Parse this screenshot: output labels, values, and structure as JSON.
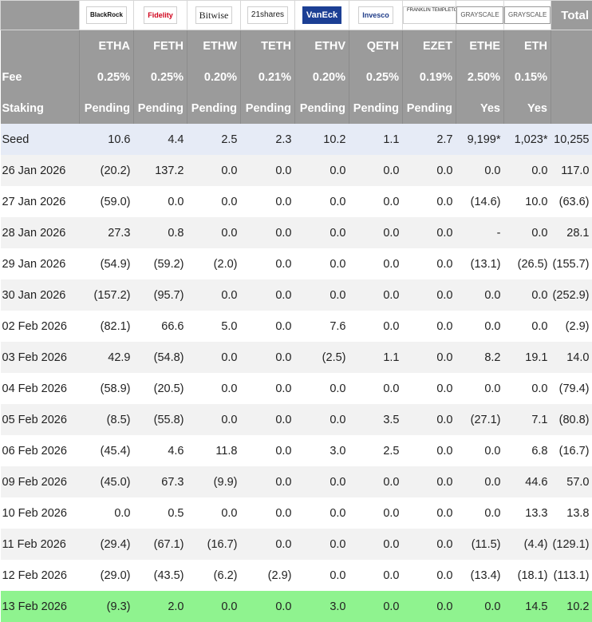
{
  "issuers": [
    "BlackRock",
    "Fidelity",
    "Bitwise",
    "21shares",
    "VanEck",
    "Invesco",
    "FRANKLIN TEMPLETON",
    "GRAYSCALE",
    "GRAYSCALE"
  ],
  "total_label": "Total",
  "tickers": [
    "ETHA",
    "FETH",
    "ETHW",
    "TETH",
    "ETHV",
    "QETH",
    "EZET",
    "ETHE",
    "ETH"
  ],
  "fee_label": "Fee",
  "fees": [
    "0.25%",
    "0.25%",
    "0.20%",
    "0.21%",
    "0.20%",
    "0.25%",
    "0.19%",
    "2.50%",
    "0.15%"
  ],
  "staking_label": "Staking",
  "staking": [
    "Pending",
    "Pending",
    "Pending",
    "Pending",
    "Pending",
    "Pending",
    "Pending",
    "Yes",
    "Yes"
  ],
  "rows": [
    {
      "label": "Seed",
      "cells": [
        "10.6",
        "4.4",
        "2.5",
        "2.3",
        "10.2",
        "1.1",
        "2.7",
        "9,199*",
        "1,023*",
        "10,255"
      ]
    },
    {
      "label": "26 Jan 2026",
      "cells": [
        "(20.2)",
        "137.2",
        "0.0",
        "0.0",
        "0.0",
        "0.0",
        "0.0",
        "0.0",
        "0.0",
        "117.0"
      ]
    },
    {
      "label": "27 Jan 2026",
      "cells": [
        "(59.0)",
        "0.0",
        "0.0",
        "0.0",
        "0.0",
        "0.0",
        "0.0",
        "(14.6)",
        "10.0",
        "(63.6)"
      ]
    },
    {
      "label": "28 Jan 2026",
      "cells": [
        "27.3",
        "0.8",
        "0.0",
        "0.0",
        "0.0",
        "0.0",
        "0.0",
        "-",
        "0.0",
        "28.1"
      ]
    },
    {
      "label": "29 Jan 2026",
      "cells": [
        "(54.9)",
        "(59.2)",
        "(2.0)",
        "0.0",
        "0.0",
        "0.0",
        "0.0",
        "(13.1)",
        "(26.5)",
        "(155.7)"
      ]
    },
    {
      "label": "30 Jan 2026",
      "cells": [
        "(157.2)",
        "(95.7)",
        "0.0",
        "0.0",
        "0.0",
        "0.0",
        "0.0",
        "0.0",
        "0.0",
        "(252.9)"
      ]
    },
    {
      "label": "02 Feb 2026",
      "cells": [
        "(82.1)",
        "66.6",
        "5.0",
        "0.0",
        "7.6",
        "0.0",
        "0.0",
        "0.0",
        "0.0",
        "(2.9)"
      ]
    },
    {
      "label": "03 Feb 2026",
      "cells": [
        "42.9",
        "(54.8)",
        "0.0",
        "0.0",
        "(2.5)",
        "1.1",
        "0.0",
        "8.2",
        "19.1",
        "14.0"
      ]
    },
    {
      "label": "04 Feb 2026",
      "cells": [
        "(58.9)",
        "(20.5)",
        "0.0",
        "0.0",
        "0.0",
        "0.0",
        "0.0",
        "0.0",
        "0.0",
        "(79.4)"
      ]
    },
    {
      "label": "05 Feb 2026",
      "cells": [
        "(8.5)",
        "(55.8)",
        "0.0",
        "0.0",
        "0.0",
        "3.5",
        "0.0",
        "(27.1)",
        "7.1",
        "(80.8)"
      ]
    },
    {
      "label": "06 Feb 2026",
      "cells": [
        "(45.4)",
        "4.6",
        "11.8",
        "0.0",
        "3.0",
        "2.5",
        "0.0",
        "0.0",
        "6.8",
        "(16.7)"
      ]
    },
    {
      "label": "09 Feb 2026",
      "cells": [
        "(45.0)",
        "67.3",
        "(9.9)",
        "0.0",
        "0.0",
        "0.0",
        "0.0",
        "0.0",
        "44.6",
        "57.0"
      ]
    },
    {
      "label": "10 Feb 2026",
      "cells": [
        "0.0",
        "0.5",
        "0.0",
        "0.0",
        "0.0",
        "0.0",
        "0.0",
        "0.0",
        "13.3",
        "13.8"
      ]
    },
    {
      "label": "11 Feb 2026",
      "cells": [
        "(29.4)",
        "(67.1)",
        "(16.7)",
        "0.0",
        "0.0",
        "0.0",
        "0.0",
        "(11.5)",
        "(4.4)",
        "(129.1)"
      ]
    },
    {
      "label": "12 Feb 2026",
      "cells": [
        "(29.0)",
        "(43.5)",
        "(6.2)",
        "(2.9)",
        "0.0",
        "0.0",
        "0.0",
        "(13.4)",
        "(18.1)",
        "(113.1)"
      ]
    },
    {
      "label": "13 Feb 2026",
      "cells": [
        "(9.3)",
        "2.0",
        "0.0",
        "0.0",
        "3.0",
        "0.0",
        "0.0",
        "0.0",
        "14.5",
        "10.2"
      ]
    }
  ],
  "colors": {
    "header_bg": "#9b9b9b",
    "negative": "#e02424",
    "seed_bg": "#e6ebf6",
    "latest_bg": "#8ff38f"
  }
}
